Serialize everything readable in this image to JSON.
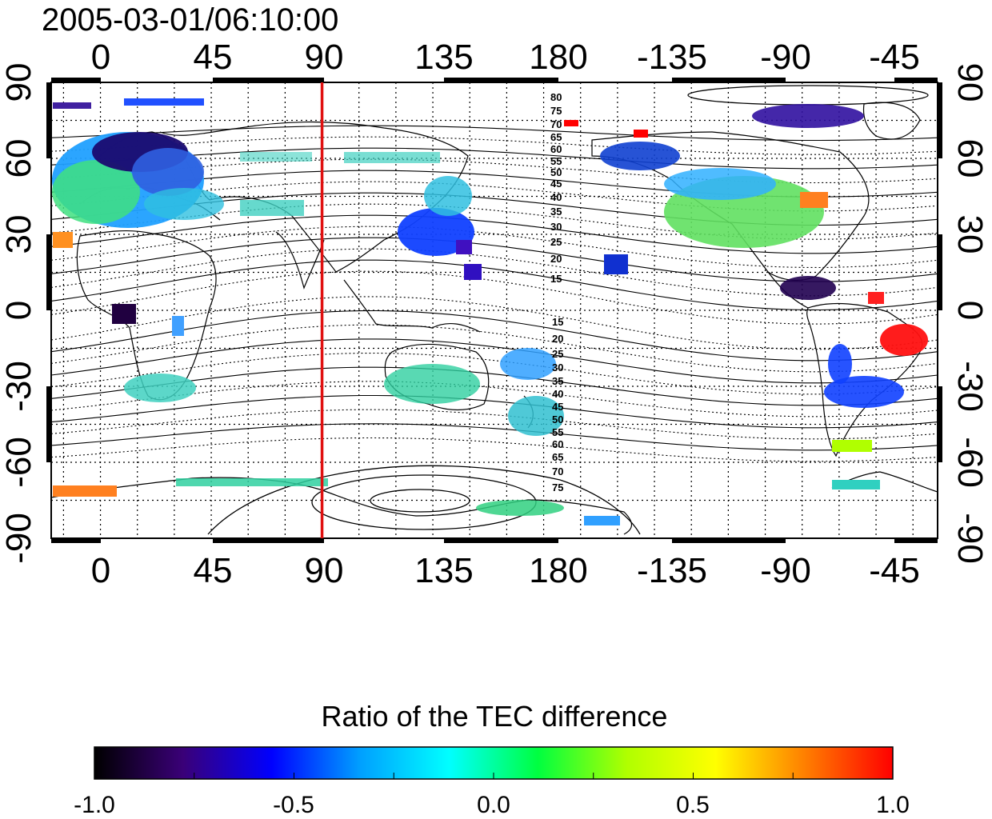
{
  "map": {
    "timestamp": "2005-03-01/06:10:00",
    "lon_ticks_top": [
      "0",
      "45",
      "90",
      "135",
      "180",
      "-135",
      "-90",
      "-45"
    ],
    "lon_ticks_bottom": [
      "0",
      "45",
      "90",
      "135",
      "180",
      "-135",
      "-90",
      "-45"
    ],
    "lat_ticks_left": [
      "90",
      "60",
      "30",
      "0",
      "-30",
      "-60",
      "-90"
    ],
    "lat_ticks_right": [
      "90",
      "60",
      "30",
      "0",
      "-30",
      "-60",
      "-90"
    ],
    "lon_range": [
      -20,
      340
    ],
    "lat_range": [
      -90,
      90
    ],
    "marker_line_lon": 90,
    "marker_line_color": "#e01010",
    "contour_labels_north": [
      "80",
      "75",
      "70",
      "65",
      "60",
      "55",
      "50",
      "45",
      "40",
      "35",
      "30",
      "25",
      "20",
      "15"
    ],
    "contour_labels_south": [
      "15",
      "20",
      "25",
      "30",
      "35",
      "40",
      "45",
      "50",
      "55",
      "60",
      "65",
      "70",
      "75"
    ]
  },
  "colorbar": {
    "title": "Ratio of the TEC difference",
    "ticks": [
      "-1.0",
      "-0.5",
      "0.0",
      "0.5",
      "1.0"
    ],
    "range": [
      -1.0,
      1.0
    ],
    "colors": [
      "#000000",
      "#3a0078",
      "#0000ff",
      "#00a0ff",
      "#00ffff",
      "#00ff40",
      "#b0ff00",
      "#ffff00",
      "#ff8000",
      "#ff0000"
    ]
  }
}
